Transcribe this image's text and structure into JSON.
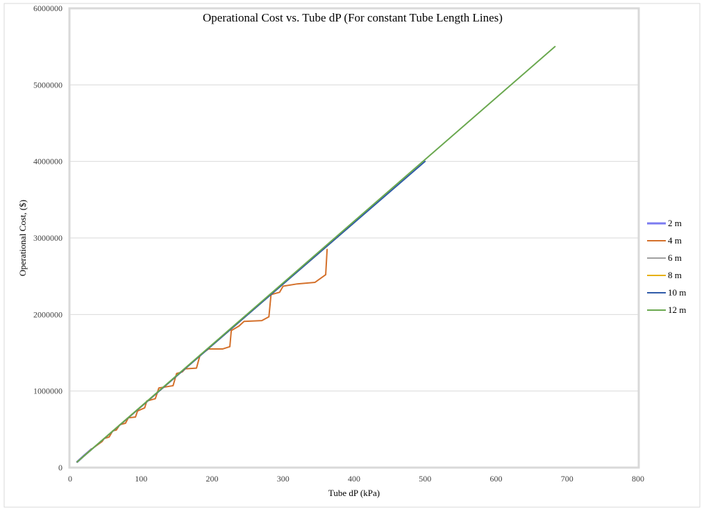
{
  "chart_data": {
    "type": "line",
    "title": "Operational Cost vs. Tube dP (For constant Tube Length Lines)",
    "xlabel": "Tube dP (kPa)",
    "ylabel": "Operational Cost, ($)",
    "xlim": [
      0,
      800
    ],
    "ylim": [
      0,
      6000000
    ],
    "xticks": [
      0,
      100,
      200,
      300,
      400,
      500,
      600,
      700,
      800
    ],
    "yticks": [
      0,
      1000000,
      2000000,
      3000000,
      4000000,
      5000000,
      6000000
    ],
    "xtick_labels": [
      "0",
      "100",
      "200",
      "300",
      "400",
      "500",
      "600",
      "700",
      "800"
    ],
    "ytick_labels": [
      "0",
      "1000000",
      "2000000",
      "3000000",
      "4000000",
      "5000000",
      "6000000"
    ],
    "grid": "horizontal",
    "legend_position": "right",
    "series": [
      {
        "name": "2 m",
        "color": "#7b7bf0",
        "points": [
          [
            10,
            75000
          ],
          [
            20,
            160000
          ],
          [
            30,
            240000
          ]
        ]
      },
      {
        "name": "4 m",
        "color": "#d4702a",
        "points": [
          [
            10,
            75000
          ],
          [
            30,
            240000
          ],
          [
            45,
            340000
          ],
          [
            48,
            380000
          ],
          [
            55,
            400000
          ],
          [
            60,
            480000
          ],
          [
            65,
            490000
          ],
          [
            70,
            560000
          ],
          [
            78,
            580000
          ],
          [
            82,
            650000
          ],
          [
            92,
            660000
          ],
          [
            95,
            740000
          ],
          [
            105,
            780000
          ],
          [
            108,
            870000
          ],
          [
            120,
            900000
          ],
          [
            125,
            1040000
          ],
          [
            145,
            1070000
          ],
          [
            150,
            1230000
          ],
          [
            158,
            1250000
          ],
          [
            162,
            1290000
          ],
          [
            178,
            1300000
          ],
          [
            183,
            1470000
          ],
          [
            195,
            1550000
          ],
          [
            215,
            1550000
          ],
          [
            225,
            1580000
          ],
          [
            227,
            1790000
          ],
          [
            238,
            1850000
          ],
          [
            245,
            1910000
          ],
          [
            270,
            1920000
          ],
          [
            280,
            1970000
          ],
          [
            283,
            2260000
          ],
          [
            295,
            2290000
          ],
          [
            300,
            2370000
          ],
          [
            320,
            2400000
          ],
          [
            345,
            2420000
          ],
          [
            360,
            2520000
          ],
          [
            362,
            2850000
          ]
        ]
      },
      {
        "name": "6 m",
        "color": "#a0a0a0",
        "points": [
          [
            10,
            75000
          ],
          [
            300,
            2400000
          ]
        ]
      },
      {
        "name": "8 m",
        "color": "#e6b000",
        "points": [
          [
            10,
            75000
          ],
          [
            400,
            3200000
          ]
        ]
      },
      {
        "name": "10 m",
        "color": "#2e5aa8",
        "points": [
          [
            10,
            75000
          ],
          [
            500,
            4000000
          ]
        ]
      },
      {
        "name": "12 m",
        "color": "#6aa84f",
        "points": [
          [
            10,
            75000
          ],
          [
            683,
            5500000
          ]
        ]
      }
    ]
  }
}
